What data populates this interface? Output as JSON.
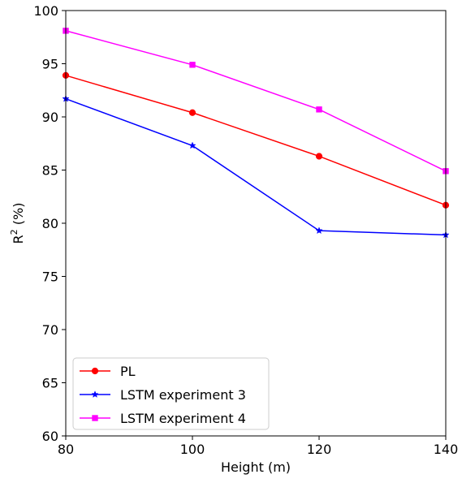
{
  "chart_data": {
    "type": "line",
    "title": "",
    "xlabel": "Height (m)",
    "ylabel_main": "R",
    "ylabel_sup": "2",
    "ylabel_tail": " (%)",
    "xlim": [
      80,
      140
    ],
    "ylim": [
      60,
      100
    ],
    "x_ticks": [
      80,
      100,
      120,
      140
    ],
    "y_ticks": [
      60,
      65,
      70,
      75,
      80,
      85,
      90,
      95,
      100
    ],
    "x_tick_labels": [
      "80",
      "100",
      "120",
      "140"
    ],
    "y_tick_labels": [
      "60",
      "65",
      "70",
      "75",
      "80",
      "85",
      "90",
      "95",
      "100"
    ],
    "grid": false,
    "legend_position": "lower-left",
    "x": [
      80,
      100,
      120,
      140
    ],
    "series": [
      {
        "name": "PL",
        "values": [
          93.9,
          90.4,
          86.3,
          81.7
        ],
        "color": "#ff0000",
        "marker": "circle"
      },
      {
        "name": "LSTM experiment 3",
        "values": [
          91.7,
          87.3,
          79.3,
          78.9
        ],
        "color": "#0000ff",
        "marker": "star"
      },
      {
        "name": "LSTM experiment 4",
        "values": [
          98.1,
          94.9,
          90.7,
          84.9
        ],
        "color": "#ff00ff",
        "marker": "square"
      }
    ]
  }
}
